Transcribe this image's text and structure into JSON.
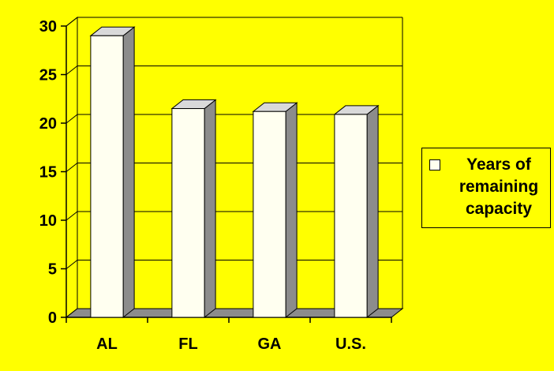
{
  "chart_data": {
    "type": "bar",
    "categories": [
      "AL",
      "FL",
      "GA",
      "U.S."
    ],
    "series": [
      {
        "name": "Years of remaining capacity",
        "values": [
          29,
          21.5,
          21.2,
          20.9
        ]
      }
    ],
    "ylim": [
      0,
      30
    ],
    "yticks": [
      "0",
      "5",
      "10",
      "15",
      "20",
      "25",
      "30"
    ],
    "grid": true,
    "legend_position": "right",
    "colors": {
      "background": "#ffff00",
      "bar_front": "#fffff0",
      "bar_top": "#d9d9d9",
      "bar_side": "#8c8c8c",
      "floor": "#8c8c8c",
      "grid": "#000000"
    }
  },
  "legend": {
    "label": "Years of remaining capacity"
  }
}
